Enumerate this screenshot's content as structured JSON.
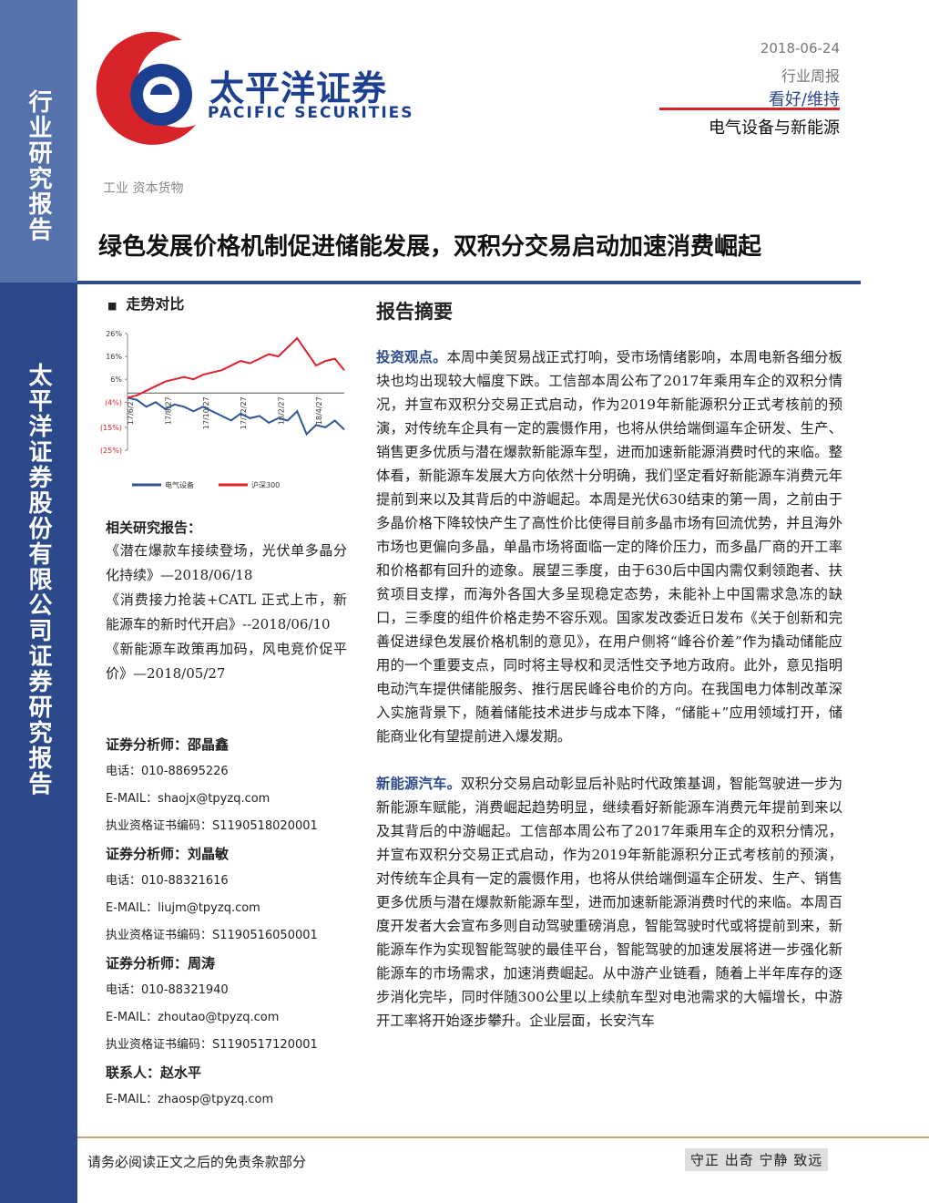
{
  "sidebar": {
    "top": "行业研究报告",
    "bottom": "太平洋证券股份有限公司证券研究报告"
  },
  "header": {
    "logo_cn": "太平洋证券",
    "logo_en": "PACIFIC SECURITIES",
    "date": "2018-06-24",
    "report_type": "行业周报",
    "rating": "看好/维持",
    "sector": "电气设备与新能源"
  },
  "breadcrumb": "工业 资本货物",
  "title": "绿色发展价格机制促进储能发展，双积分交易启动加速消费崛起",
  "trend_chart": {
    "title": "走势对比",
    "type": "line",
    "categories": [
      "17/6/27",
      null,
      null,
      null,
      "17/8/27",
      null,
      null,
      null,
      "17/10/27",
      null,
      null,
      null,
      "17/12/27",
      null,
      null,
      null,
      "18/2/27",
      null,
      null,
      null,
      "18/4/27",
      null,
      null,
      null
    ],
    "series": [
      {
        "name": "电气设备",
        "color": "#2f5597",
        "values": [
          -2,
          -3,
          -6,
          -4,
          -7,
          -5,
          -6,
          -8,
          -6,
          -8,
          -10,
          -12,
          -9,
          -11,
          -10,
          -13,
          -11,
          -12,
          -8,
          -18,
          -14,
          -15,
          -12,
          -16
        ]
      },
      {
        "name": "沪深300",
        "color": "#e0202a",
        "values": [
          -2,
          -1,
          1,
          3,
          5,
          6,
          7,
          6,
          8,
          9,
          10,
          12,
          14,
          13,
          15,
          17,
          16,
          20,
          24,
          18,
          12,
          14,
          15,
          10
        ]
      }
    ],
    "ylim": [
      -25,
      26
    ],
    "yticks": [
      {
        "value": 26,
        "label": "26%"
      },
      {
        "value": 16,
        "label": "16%"
      },
      {
        "value": 6,
        "label": "6%"
      },
      {
        "value": -4,
        "label": "(4%)"
      },
      {
        "value": -15,
        "label": "(15%)"
      },
      {
        "value": -25,
        "label": "(25%)"
      }
    ]
  },
  "related": {
    "heading": "相关研究报告：",
    "items": [
      "《潜在爆款车接续登场，光伏单多晶分化持续》—2018/06/18",
      "《消费接力抢装+CATL 正式上市，新能源车的新时代开启》--2018/06/10",
      "《新能源车政策再加码，风电竞价促平价》—2018/05/27"
    ]
  },
  "analysts": [
    {
      "name": "证券分析师：邵晶鑫",
      "phone": "电话：010-88695226",
      "email": "E-MAIL：shaojx@tpyzq.com",
      "cert": "执业资格证书编码：S1190518020001"
    },
    {
      "name": "证券分析师：刘晶敏",
      "phone": "电话：010-88321616",
      "email": "E-MAIL：liujm@tpyzq.com",
      "cert": "执业资格证书编码：S1190516050001"
    },
    {
      "name": "证券分析师：周涛",
      "phone": "电话：010-88321940",
      "email": "E-MAIL：zhoutao@tpyzq.com",
      "cert": "执业资格证书编码：S1190517120001"
    }
  ],
  "contact": {
    "name": "联系人：赵水平",
    "email": "E-MAIL：zhaosp@tpyzq.com"
  },
  "summary": {
    "heading": "报告摘要",
    "paragraphs": [
      {
        "lead": "投资观点。",
        "text": "本周中美贸易战正式打响，受市场情绪影响，本周电新各细分板块也均出现较大幅度下跌。工信部本周公布了2017年乘用车企的双积分情况，并宣布双积分交易正式启动，作为2019年新能源积分正式考核前的预演，对传统车企具有一定的震慑作用，也将从供给端倒逼车企研发、生产、销售更多优质与潜在爆款新能源车型，进而加速新能源消费时代的来临。整体看，新能源车发展大方向依然十分明确，我们坚定看好新能源车消费元年提前到来以及其背后的中游崛起。本周是光伏630结束的第一周，之前由于多晶价格下降较快产生了高性价比使得目前多晶市场有回流优势，并且海外市场也更偏向多晶，单晶市场将面临一定的降价压力，而多晶厂商的开工率和价格都有回升的迹象。展望三季度，由于630后中国内需仅剩领跑者、扶贫项目支撑，而海外各国大多呈现稳定态势，未能补上中国需求急冻的缺口，三季度的组件价格走势不容乐观。国家发改委近日发布《关于创新和完善促进绿色发展价格机制的意见》，在用户侧将“峰谷价差”作为撬动储能应用的一个重要支点，同时将主导权和灵活性交予地方政府。此外，意见指明电动汽车提供储能服务、推行居民峰谷电价的方向。在我国电力体制改革深入实施背景下，随着储能技术进步与成本下降，“储能+”应用领域打开，储能商业化有望提前进入爆发期。"
      },
      {
        "lead": "新能源汽车。",
        "text": "双积分交易启动彰显后补贴时代政策基调，智能驾驶进一步为新能源车赋能，消费崛起趋势明显，继续看好新能源车消费元年提前到来以及其背后的中游崛起。工信部本周公布了2017年乘用车企的双积分情况，并宣布双积分交易正式启动，作为2019年新能源积分正式考核前的预演，对传统车企具有一定的震慑作用，也将从供给端倒逼车企研发、生产、销售更多优质与潜在爆款新能源车型，进而加速新能源消费时代的来临。本周百度开发者大会宣布多则自动驾驶重磅消息，智能驾驶时代或将提前到来，新能源车作为实现智能驾驶的最佳平台，智能驾驶的加速发展将进一步强化新能源车的市场需求，加速消费崛起。从中游产业链看，随着上半年库存的逐步消化完毕，同时伴随300公里以上续航车型对电池需求的大幅增长，中游开工率将开始逐步攀升。企业层面，长安汽车"
      }
    ]
  },
  "footer": {
    "disclaimer": "请务必阅读正文之后的免责条款部分",
    "motto": "守正 出奇 宁静 致远"
  }
}
